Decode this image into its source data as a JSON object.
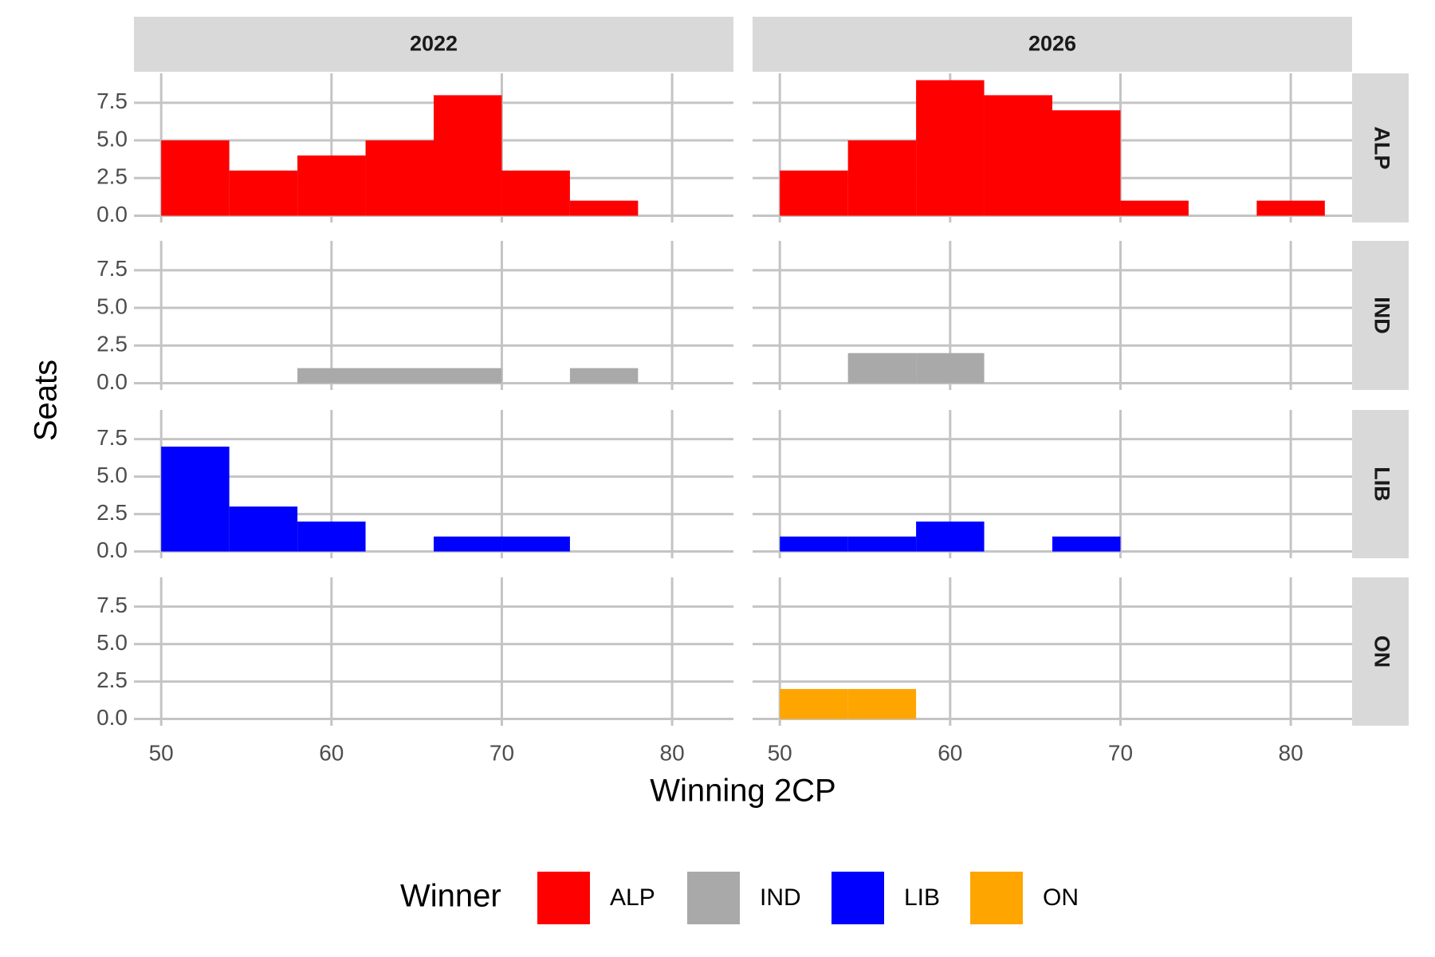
{
  "chart_data": {
    "type": "histogram",
    "x_label": "Winning 2CP",
    "y_label": "Seats",
    "legend_title": "Winner",
    "columns": [
      "2022",
      "2026"
    ],
    "bins": [
      50,
      54,
      58,
      62,
      66,
      70,
      74,
      78,
      82
    ],
    "series": [
      {
        "name": "ALP",
        "color": "#ff0000",
        "values": [
          [
            5,
            3,
            4,
            5,
            8,
            3,
            1,
            0
          ],
          [
            3,
            5,
            9,
            8,
            7,
            1,
            0,
            1
          ]
        ]
      },
      {
        "name": "IND",
        "color": "#a9a9a9",
        "values": [
          [
            0,
            0,
            1,
            1,
            1,
            0,
            1,
            0
          ],
          [
            0,
            2,
            2,
            0,
            0,
            0,
            0,
            0
          ]
        ]
      },
      {
        "name": "LIB",
        "color": "#0000ff",
        "values": [
          [
            7,
            3,
            2,
            0,
            1,
            1,
            0,
            0
          ],
          [
            1,
            1,
            2,
            0,
            1,
            0,
            0,
            0
          ]
        ]
      },
      {
        "name": "ON",
        "color": "#ffa500",
        "values": [
          [
            0,
            0,
            0,
            0,
            0,
            0,
            0,
            0
          ],
          [
            2,
            2,
            0,
            0,
            0,
            0,
            0,
            0
          ]
        ]
      }
    ],
    "xlim": [
      48.4,
      83.6
    ],
    "xticks": [
      50,
      60,
      70,
      80
    ],
    "ylim": [
      -0.45,
      9.45
    ],
    "yticks": [
      {
        "value": 0,
        "label": "0.0"
      },
      2.5,
      {
        "value": 5,
        "label": "5.0"
      },
      7.5
    ],
    "grid": true
  }
}
